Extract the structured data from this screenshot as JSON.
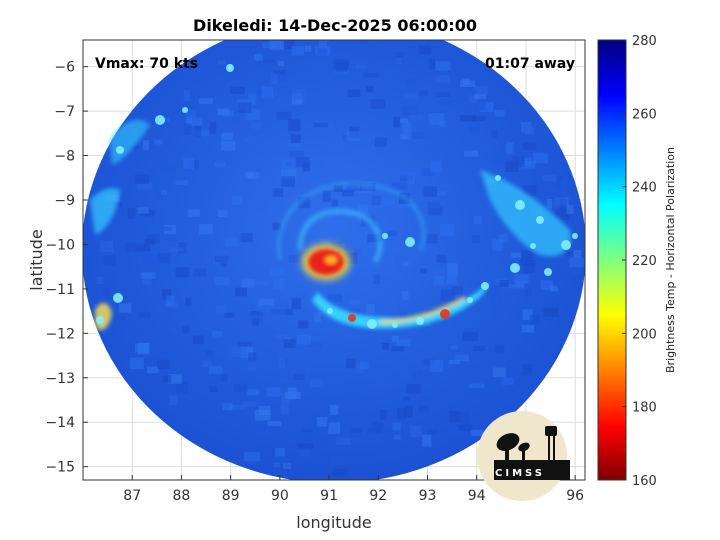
{
  "title": "Dikeledi: 14-Dec-2025 06:00:00",
  "annotations": {
    "vmax": "Vmax: 70 kts",
    "time_away": "01:07 away"
  },
  "map": {
    "xlabel": "longitude",
    "ylabel": "latitude",
    "xlim": [
      86.0,
      96.2
    ],
    "ylim": [
      -15.3,
      -5.4
    ],
    "xticks": [
      87,
      88,
      89,
      90,
      91,
      92,
      93,
      94,
      95,
      96
    ],
    "yticks": [
      -6,
      -7,
      -8,
      -9,
      -10,
      -11,
      -12,
      -13,
      -14,
      -15
    ],
    "grid": true,
    "storm_center": {
      "lon": 90.9,
      "lat": -10.4
    },
    "swath_center": {
      "lon": 91.0,
      "lat": -10.35
    }
  },
  "colorbar": {
    "label": "Brightness Temp - Horizontal Polarization",
    "range": [
      160,
      280
    ],
    "ticks": [
      280,
      260,
      240,
      220,
      200,
      180,
      160
    ],
    "colormap": "jet-reversed",
    "colors": [
      "#800000",
      "#ff0000",
      "#ffff00",
      "#00ffff",
      "#0000ff",
      "#000080"
    ]
  },
  "logo": {
    "text": "CIMSS"
  },
  "colors": {
    "background_field": "#1f5fe0",
    "eyewall": "#e8221a",
    "rainband": "#2ad0ff"
  }
}
